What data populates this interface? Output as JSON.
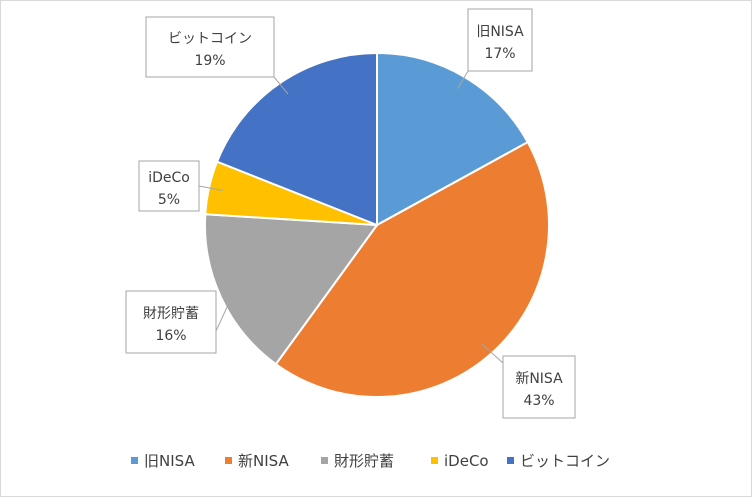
{
  "chart_data": {
    "type": "pie",
    "title": "",
    "categories": [
      "旧NISA",
      "新NISA",
      "財形貯蓄",
      "iDeCo",
      "ビットコイン"
    ],
    "values": [
      17,
      43,
      16,
      5,
      19
    ],
    "value_labels": [
      "17%",
      "43%",
      "16%",
      "5%",
      "19%"
    ],
    "colors": [
      "#5b9bd5",
      "#ed7d31",
      "#a5a5a5",
      "#ffc000",
      "#4472c4"
    ],
    "start_angle_deg": 0,
    "direction": "clockwise",
    "legend_position": "bottom",
    "data_labels": "callout-boxes"
  }
}
